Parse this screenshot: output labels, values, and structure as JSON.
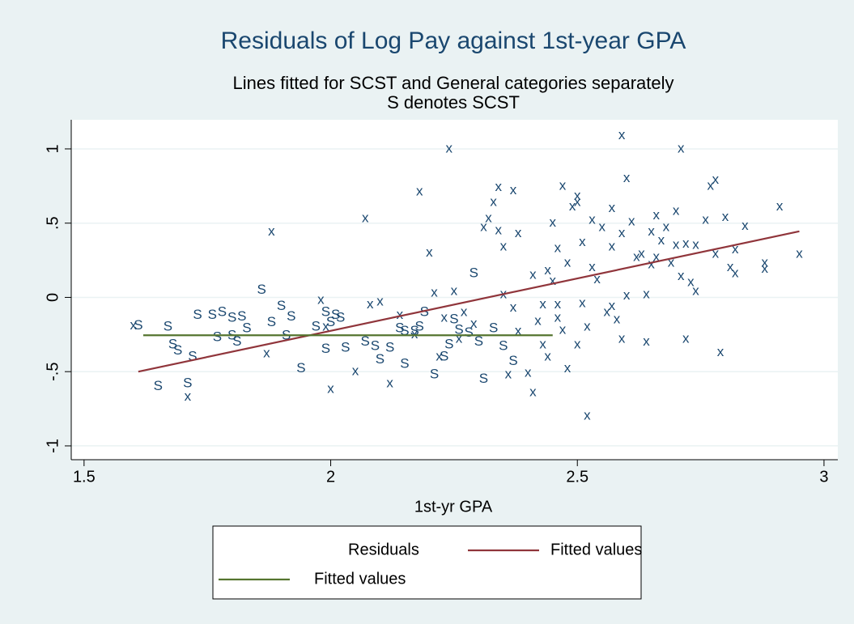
{
  "chart_data": {
    "type": "scatter",
    "title": "Residuals of Log Pay against 1st-year GPA",
    "subtitle": [
      "Lines fitted for SCST and General categories separately",
      "S denotes SCST"
    ],
    "x_label": "1st-yr GPA",
    "xlim": [
      1.474,
      3.028
    ],
    "xticks": [
      1.5,
      2,
      2.5,
      3
    ],
    "ylim": [
      -1.093,
      1.196
    ],
    "yticks": [
      {
        "value": -1,
        "label": "-1"
      },
      {
        "value": -0.5,
        "label": "-.5"
      },
      0,
      {
        "value": 0.5,
        "label": ".5"
      },
      1
    ],
    "grid": true,
    "series": [
      {
        "name": "Residuals",
        "type": "scatter",
        "color": "#1a476f",
        "x": [
          1.61,
          1.65,
          1.68,
          1.69,
          1.72,
          1.73,
          1.71,
          1.76,
          1.77,
          1.78,
          1.8,
          1.82,
          1.8,
          1.81,
          1.83,
          1.86,
          1.88,
          1.9,
          1.91,
          1.92,
          1.94,
          1.97,
          1.99,
          2.0,
          2.01,
          2.02,
          2.03,
          1.99,
          2.07,
          2.09,
          2.1,
          2.12,
          2.14,
          2.15,
          2.17,
          2.18,
          2.19,
          2.21,
          2.23,
          2.24,
          2.26,
          2.28,
          2.3,
          2.31,
          2.29,
          2.33,
          2.35,
          2.37,
          2.25,
          2.15,
          1.67,
          1.6,
          1.71,
          1.88,
          1.87,
          1.98,
          1.99,
          2.0,
          2.05,
          2.07,
          2.08,
          2.1,
          2.12,
          2.14,
          2.17,
          2.18,
          2.2,
          2.21,
          2.22,
          2.23,
          2.24,
          2.25,
          2.26,
          2.27,
          2.29,
          2.31,
          2.32,
          2.33,
          2.34,
          2.34,
          2.35,
          2.36,
          2.37,
          2.38,
          2.37,
          2.38,
          2.4,
          2.41,
          2.41,
          2.42,
          2.43,
          2.44,
          2.45,
          2.45,
          2.46,
          2.46,
          2.47,
          2.47,
          2.48,
          2.49,
          2.5,
          2.5,
          2.51,
          2.51,
          2.52,
          2.52,
          2.53,
          2.53,
          2.54,
          2.55,
          2.56,
          2.57,
          2.57,
          2.58,
          2.59,
          2.59,
          2.59,
          2.6,
          2.6,
          2.61,
          2.62,
          2.63,
          2.64,
          2.64,
          2.65,
          2.65,
          2.66,
          2.66,
          2.67,
          2.68,
          2.69,
          2.7,
          2.7,
          2.71,
          2.71,
          2.72,
          2.72,
          2.73,
          2.74,
          2.74,
          2.76,
          2.77,
          2.78,
          2.78,
          2.79,
          2.8,
          2.81,
          2.82,
          2.82,
          2.84,
          2.88,
          2.88,
          2.91,
          2.95,
          2.48,
          2.44,
          2.5,
          2.46,
          2.57,
          2.43,
          2.35
        ],
        "values": [
          -0.19,
          -0.6,
          -0.32,
          -0.36,
          -0.4,
          -0.12,
          -0.58,
          -0.12,
          -0.27,
          -0.1,
          -0.14,
          -0.13,
          -0.26,
          -0.3,
          -0.21,
          0.05,
          -0.17,
          -0.06,
          -0.26,
          -0.13,
          -0.48,
          -0.2,
          -0.1,
          -0.17,
          -0.12,
          -0.14,
          -0.34,
          -0.35,
          -0.3,
          -0.33,
          -0.42,
          -0.34,
          -0.21,
          -0.23,
          -0.23,
          -0.2,
          -0.1,
          -0.52,
          -0.4,
          -0.32,
          -0.22,
          -0.24,
          -0.3,
          -0.55,
          0.16,
          -0.21,
          -0.33,
          -0.43,
          -0.15,
          -0.45,
          -0.2,
          -0.19,
          -0.67,
          0.44,
          -0.38,
          -0.02,
          -0.2,
          -0.62,
          -0.5,
          0.53,
          -0.05,
          -0.03,
          -0.58,
          -0.12,
          -0.25,
          0.71,
          0.3,
          0.03,
          -0.4,
          -0.14,
          1.0,
          0.04,
          -0.28,
          -0.1,
          -0.18,
          0.47,
          0.53,
          0.64,
          0.45,
          0.74,
          0.34,
          -0.52,
          0.72,
          0.43,
          -0.07,
          -0.23,
          -0.51,
          -0.64,
          0.15,
          -0.16,
          -0.32,
          -0.4,
          0.11,
          0.5,
          -0.05,
          0.33,
          0.75,
          -0.22,
          -0.48,
          0.61,
          0.68,
          0.64,
          -0.04,
          0.37,
          -0.2,
          -0.8,
          0.52,
          0.2,
          0.12,
          0.47,
          -0.1,
          0.6,
          0.34,
          -0.15,
          1.09,
          0.43,
          -0.28,
          0.8,
          0.01,
          0.51,
          0.27,
          0.29,
          -0.3,
          0.02,
          0.44,
          0.22,
          0.55,
          0.27,
          0.38,
          0.47,
          0.23,
          0.58,
          0.35,
          0.14,
          1.0,
          -0.28,
          0.36,
          0.1,
          0.04,
          0.35,
          0.52,
          0.75,
          0.79,
          0.29,
          -0.37,
          0.54,
          0.2,
          0.32,
          0.16,
          0.48,
          0.23,
          0.19,
          0.61,
          0.29,
          0.23,
          0.18,
          -0.32,
          -0.14,
          -0.06,
          -0.05,
          0.02
        ],
        "point_labels": [
          "S",
          "S",
          "S",
          "S",
          "S",
          "S",
          "S",
          "S",
          "S",
          "S",
          "S",
          "S",
          "S",
          "S",
          "S",
          "S",
          "S",
          "S",
          "S",
          "S",
          "S",
          "S",
          "S",
          "S",
          "S",
          "S",
          "S",
          "S",
          "S",
          "S",
          "S",
          "S",
          "S",
          "S",
          "S",
          "S",
          "S",
          "S",
          "S",
          "S",
          "S",
          "S",
          "S",
          "S",
          "S",
          "S",
          "S",
          "S",
          "S",
          "S",
          "S",
          "x",
          "x",
          "x",
          "x",
          "x",
          "x",
          "x",
          "x",
          "x",
          "x",
          "x",
          "x",
          "x",
          "x",
          "x",
          "x",
          "x",
          "x",
          "x",
          "x",
          "x",
          "x",
          "x",
          "x",
          "x",
          "x",
          "x",
          "x",
          "x",
          "x",
          "x",
          "x",
          "x",
          "x",
          "x",
          "x",
          "x",
          "x",
          "x",
          "x",
          "x",
          "x",
          "x",
          "x",
          "x",
          "x",
          "x",
          "x",
          "x",
          "x",
          "x",
          "x",
          "x",
          "x",
          "x",
          "x",
          "x",
          "x",
          "x",
          "x",
          "x",
          "x",
          "x",
          "x",
          "x",
          "x",
          "x",
          "x",
          "x",
          "x",
          "x",
          "x",
          "x",
          "x",
          "x",
          "x",
          "x",
          "x",
          "x",
          "x",
          "x",
          "x",
          "x",
          "x",
          "x",
          "x",
          "x",
          "x",
          "x",
          "x",
          "x",
          "x",
          "x",
          "x",
          "x",
          "x",
          "x",
          "x",
          "x",
          "x",
          "x",
          "x",
          "x",
          "x",
          "x",
          "x",
          "x",
          "x",
          "x",
          "x"
        ]
      },
      {
        "name": "Fitted values",
        "type": "line",
        "color": "#90353b",
        "x": [
          1.61,
          2.95
        ],
        "values": [
          -0.5,
          0.445
        ]
      },
      {
        "name": "Fitted values",
        "type": "line",
        "color": "#55752f",
        "x": [
          1.62,
          2.45
        ],
        "values": [
          -0.255,
          -0.255
        ]
      }
    ]
  }
}
